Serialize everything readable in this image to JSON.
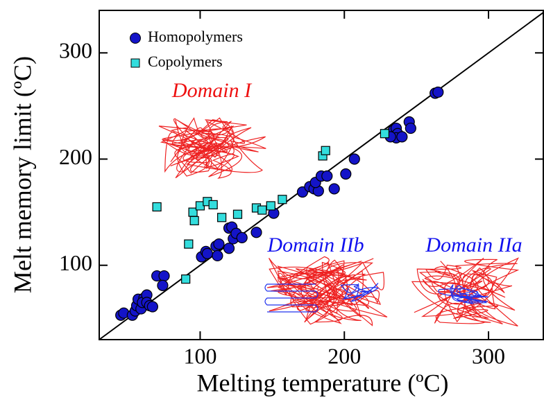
{
  "chart_data": {
    "type": "scatter",
    "x_label": "Melting temperature (ºC)",
    "y_label": "Melt memory limit  (ºC)",
    "xlim": [
      30,
      338
    ],
    "ylim": [
      30,
      340
    ],
    "xticks": [
      100,
      200,
      300
    ],
    "yticks": [
      100,
      200,
      300
    ],
    "legend": "top-left",
    "series": [
      {
        "name": "Homopolymers",
        "color": "#1414c8",
        "marker": "circle",
        "x": [
          45,
          47,
          53,
          55,
          56,
          59,
          57,
          61,
          60,
          63,
          63,
          65,
          67,
          70,
          75,
          74,
          101,
          104,
          105,
          111,
          112,
          113,
          120,
          120,
          123,
          122,
          125,
          129,
          139,
          151,
          171,
          176,
          179,
          182,
          180,
          184,
          188,
          193,
          201,
          207,
          232,
          234,
          236,
          237,
          236,
          232,
          240,
          245,
          246,
          263,
          265
        ],
        "y": [
          53,
          55,
          53,
          57,
          62,
          59,
          68,
          69,
          65,
          72,
          65,
          62,
          61,
          90,
          90,
          81,
          108,
          113,
          111,
          118,
          109,
          120,
          116,
          135,
          125,
          136,
          130,
          126,
          131,
          149,
          169,
          174,
          172,
          170,
          178,
          184,
          184,
          172,
          186,
          200,
          224,
          227,
          229,
          224,
          220,
          221,
          221,
          235,
          229,
          262,
          263
        ]
      },
      {
        "name": "Copolymers",
        "color": "#33dddd",
        "marker": "square",
        "x": [
          70,
          95,
          96,
          100,
          105,
          109,
          115,
          126,
          139,
          143,
          149,
          157,
          90,
          92,
          185,
          187,
          228
        ],
        "y": [
          155,
          150,
          142,
          156,
          160,
          157,
          145,
          148,
          154,
          152,
          156,
          162,
          87,
          120,
          203,
          208,
          224
        ]
      }
    ],
    "fit_line": {
      "x": [
        30,
        338
      ],
      "y": [
        30,
        338
      ]
    },
    "annotations": [
      {
        "text": "Domain I",
        "color": "#ee1111"
      },
      {
        "text": "Domain IIb",
        "color": "#1111ee"
      },
      {
        "text": "Domain IIa",
        "color": "#1111ee"
      }
    ]
  }
}
